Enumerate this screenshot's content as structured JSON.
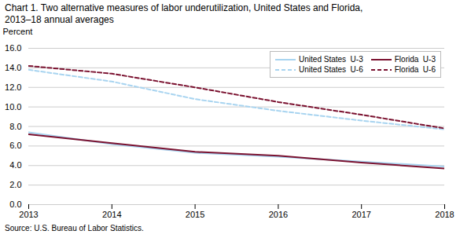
{
  "chart_data": {
    "type": "line",
    "title": "Chart 1. Two alternative measures of labor underutilization, United States and Florida,",
    "subtitle": "2013–18 annual averages",
    "ylabel": "Percent",
    "caption": "Source: U.S. Bureau of Labor Statistics.",
    "x": [
      2013,
      2014,
      2015,
      2016,
      2017,
      2018
    ],
    "series": [
      {
        "name": "United States  U-3",
        "color": "#a8d4f0",
        "line_style": "solid",
        "values": [
          7.4,
          6.2,
          5.3,
          4.9,
          4.4,
          3.9
        ]
      },
      {
        "name": "United States  U-6",
        "color": "#a8d4f0",
        "line_style": "dashed",
        "values": [
          13.8,
          12.6,
          10.8,
          9.6,
          8.6,
          7.7
        ]
      },
      {
        "name": "Florida  U-3",
        "color": "#7b1230",
        "line_style": "solid",
        "values": [
          7.2,
          6.3,
          5.4,
          5.0,
          4.3,
          3.7
        ]
      },
      {
        "name": "Florida  U-6",
        "color": "#7b1230",
        "line_style": "dashed",
        "values": [
          14.2,
          13.4,
          12.0,
          10.5,
          9.2,
          7.8
        ]
      }
    ],
    "xlim": [
      2013,
      2018
    ],
    "xticks": [
      2013,
      2014,
      2015,
      2016,
      2017,
      2018
    ],
    "ylim": [
      0,
      16
    ],
    "yticks": [
      {
        "value": 0,
        "label": "0.0"
      },
      {
        "value": 2,
        "label": "2.0"
      },
      {
        "value": 4,
        "label": "4.0"
      },
      {
        "value": 6,
        "label": "6.0"
      },
      {
        "value": 8,
        "label": "8.0"
      },
      {
        "value": 10,
        "label": "10.0"
      },
      {
        "value": 12,
        "label": "12.0"
      },
      {
        "value": 14,
        "label": "14.0"
      },
      {
        "value": 16,
        "label": "16.0"
      }
    ],
    "grid": "y",
    "legend": "upper right"
  }
}
